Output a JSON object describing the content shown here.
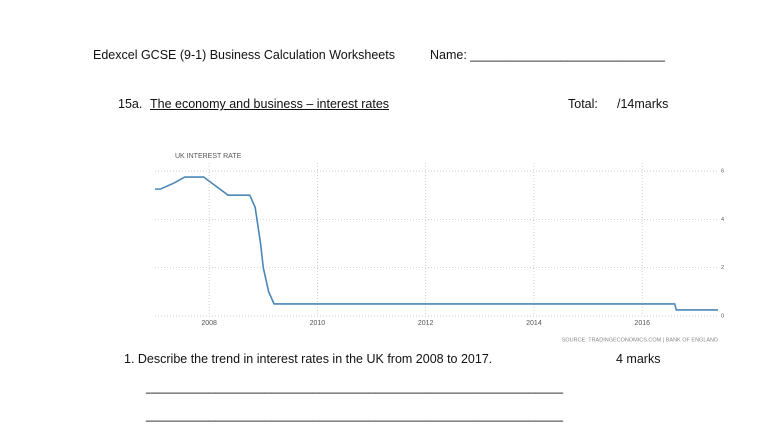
{
  "header": {
    "title": "Edexcel GCSE (9-1) Business Calculation Worksheets",
    "name": "Name: ____________________________"
  },
  "section": {
    "number": "15a.",
    "title": "The economy and business – interest rates",
    "total_label": "Total:",
    "total_marks": "/14marks"
  },
  "chart_data": {
    "type": "line",
    "title": "UK INTEREST RATE",
    "source": "SOURCE: TRADINGECONOMICS.COM | BANK OF ENGLAND",
    "color": "#4a86b8",
    "x": [
      2007.0,
      2007.1,
      2007.35,
      2007.55,
      2007.9,
      2008.05,
      2008.2,
      2008.35,
      2008.75,
      2008.85,
      2008.95,
      2009.0,
      2009.1,
      2009.2,
      2016.6,
      2016.63,
      2017.4
    ],
    "values": [
      5.25,
      5.25,
      5.5,
      5.75,
      5.75,
      5.5,
      5.25,
      5.0,
      5.0,
      4.5,
      3.0,
      2.0,
      1.0,
      0.5,
      0.5,
      0.25,
      0.25
    ],
    "xlim": [
      2007.0,
      2017.4
    ],
    "xticks": [
      2008,
      2010,
      2012,
      2014,
      2016
    ],
    "ylim": [
      0,
      6
    ],
    "yticks": [
      0,
      2,
      4,
      6
    ],
    "grid": true
  },
  "question": {
    "text": "1.  Describe the trend in interest rates in the UK from 2008 to 2017.",
    "marks": "4 marks",
    "answer_lines": [
      "____________________________________________________________",
      "____________________________________________________________"
    ]
  }
}
